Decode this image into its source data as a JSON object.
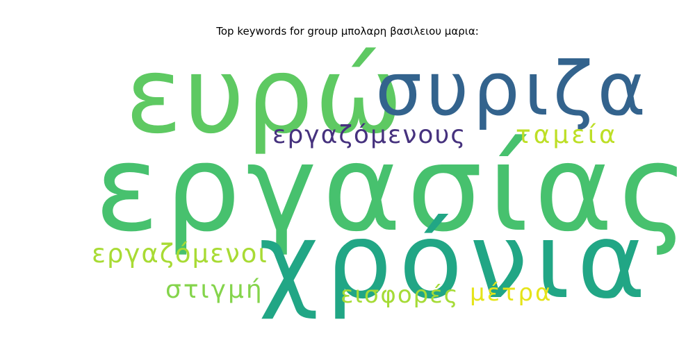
{
  "title": "Top keywords for group μπολαρη βασιλειου μαρια:",
  "words": {
    "ergasias": "εργασίας",
    "evro": "ευρώ",
    "syriza": "συριζα",
    "chronia": "χρόνια",
    "ergazomenous": "εργαζόμενους",
    "tameia": "ταμεία",
    "ergazomenoi": "εργαζόμενοι",
    "stigmi": "στιγμή",
    "eisfores": "εισφορές",
    "metra": "μέτρα"
  },
  "colors": {
    "ergasias": "#47c16e",
    "evro": "#5ec962",
    "syriza": "#33638d",
    "chronia": "#21a685",
    "ergazomenous": "#46327e",
    "tameia": "#bddf26",
    "ergazomenoi": "#a8db34",
    "stigmi": "#84d44b",
    "eisfores": "#a5db36",
    "metra": "#e5e419"
  }
}
